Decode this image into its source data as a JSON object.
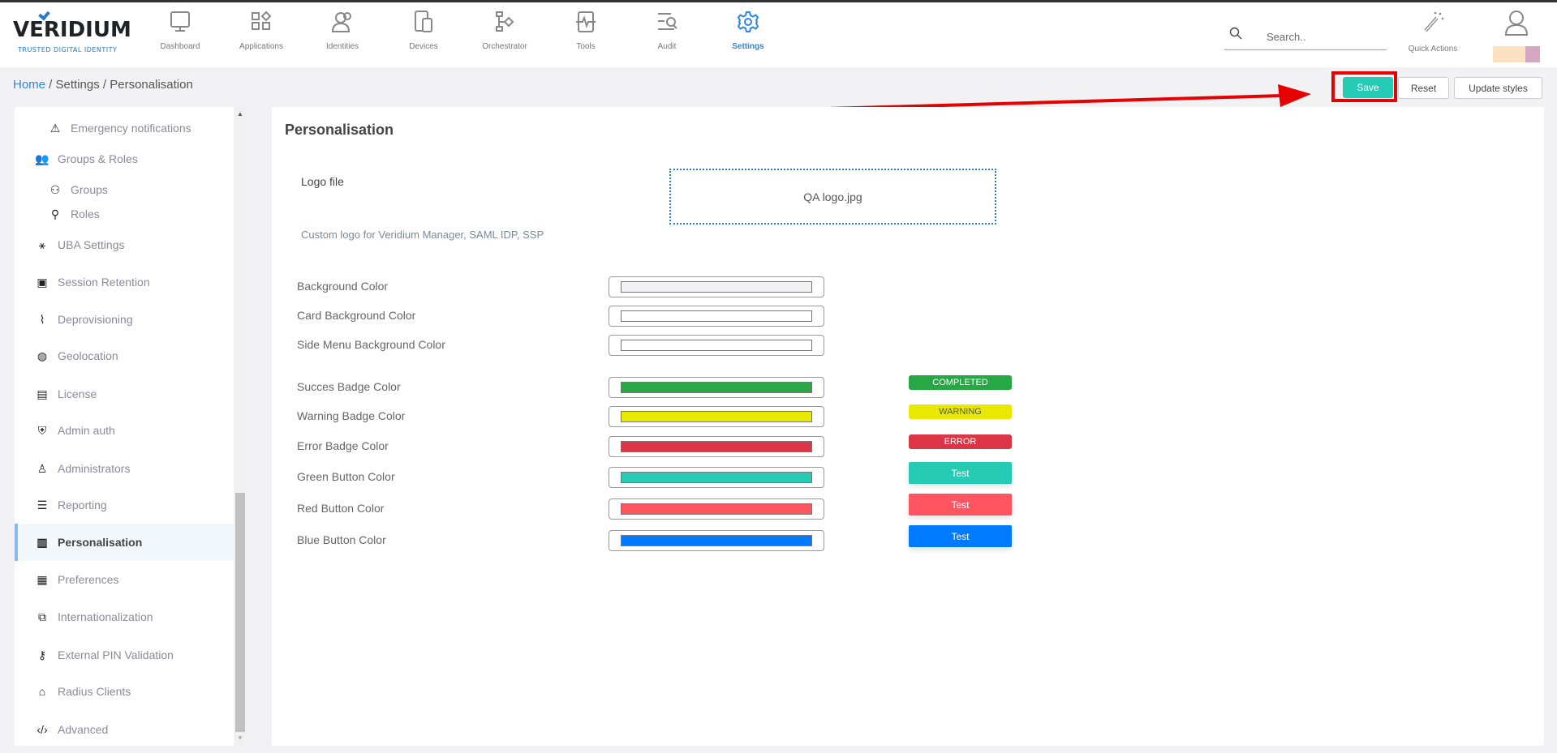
{
  "header": {
    "logo_text": "VERIDIUM",
    "logo_tagline": "TRUSTED DIGITAL IDENTITY",
    "nav": [
      {
        "label": "Dashboard",
        "icon": "monitor-icon"
      },
      {
        "label": "Applications",
        "icon": "apps-icon"
      },
      {
        "label": "Identities",
        "icon": "users-icon"
      },
      {
        "label": "Devices",
        "icon": "devices-icon"
      },
      {
        "label": "Orchestrator",
        "icon": "flow-icon"
      },
      {
        "label": "Tools",
        "icon": "pulse-icon"
      },
      {
        "label": "Audit",
        "icon": "audit-search-icon"
      },
      {
        "label": "Settings",
        "icon": "gear-icon",
        "active": true
      }
    ],
    "search_placeholder": "Search..",
    "quick_actions": "Quick Actions",
    "user_swatches": [
      "#fde2c1",
      "#d4a8c0"
    ]
  },
  "breadcrumb": [
    "Home",
    "Settings",
    "Personalisation"
  ],
  "toolbar": {
    "save": "Save",
    "reset": "Reset",
    "update_styles": "Update styles"
  },
  "sidebar": {
    "items": [
      {
        "label": "Emergency notifications",
        "sub": true,
        "icon": "warning-icon"
      },
      {
        "label": "Groups & Roles",
        "icon": "groups-roles-icon"
      },
      {
        "label": "Groups",
        "sub": true,
        "icon": "groups-icon"
      },
      {
        "label": "Roles",
        "sub": true,
        "icon": "roles-icon"
      },
      {
        "label": "UBA Settings",
        "icon": "network-icon"
      },
      {
        "label": "Session Retention",
        "icon": "save-disk-icon"
      },
      {
        "label": "Deprovisioning",
        "icon": "broom-icon"
      },
      {
        "label": "Geolocation",
        "icon": "globe-icon"
      },
      {
        "label": "License",
        "icon": "license-icon"
      },
      {
        "label": "Admin auth",
        "icon": "shield-lock-icon"
      },
      {
        "label": "Administrators",
        "icon": "admin-icon"
      },
      {
        "label": "Reporting",
        "icon": "report-icon"
      },
      {
        "label": "Personalisation",
        "icon": "ruler-pencil-icon",
        "active": true
      },
      {
        "label": "Preferences",
        "icon": "preferences-icon"
      },
      {
        "label": "Internationalization",
        "icon": "translate-icon"
      },
      {
        "label": "External PIN Validation",
        "icon": "key-icon"
      },
      {
        "label": "Radius Clients",
        "icon": "radius-icon"
      },
      {
        "label": "Advanced",
        "icon": "code-icon"
      }
    ]
  },
  "main": {
    "title": "Personalisation",
    "logo_label": "Logo file",
    "logo_file": "QA logo.jpg",
    "logo_help": "Custom logo for Veridium Manager, SAML IDP, SSP",
    "colors": [
      {
        "label": "Background Color",
        "value": "#f2f2f4"
      },
      {
        "label": "Card Background Color",
        "value": "#ffffff"
      },
      {
        "label": "Side Menu Background Color",
        "value": "#ffffff"
      },
      {
        "label": "Succes Badge Color",
        "value": "#28a745",
        "preview": "COMPLETED",
        "kind": "badge"
      },
      {
        "label": "Warning Badge Color",
        "value": "#e8e800",
        "preview": "WARNING",
        "kind": "badge",
        "text_color": "#555555"
      },
      {
        "label": "Error Badge Color",
        "value": "#dc3545",
        "preview": "ERROR",
        "kind": "badge"
      },
      {
        "label": "Green Button Color",
        "value": "#26cbb6",
        "preview": "Test",
        "kind": "button"
      },
      {
        "label": "Red Button Color",
        "value": "#ff5560",
        "preview": "Test",
        "kind": "button"
      },
      {
        "label": "Blue Button Color",
        "value": "#007bff",
        "preview": "Test",
        "kind": "button"
      }
    ]
  }
}
